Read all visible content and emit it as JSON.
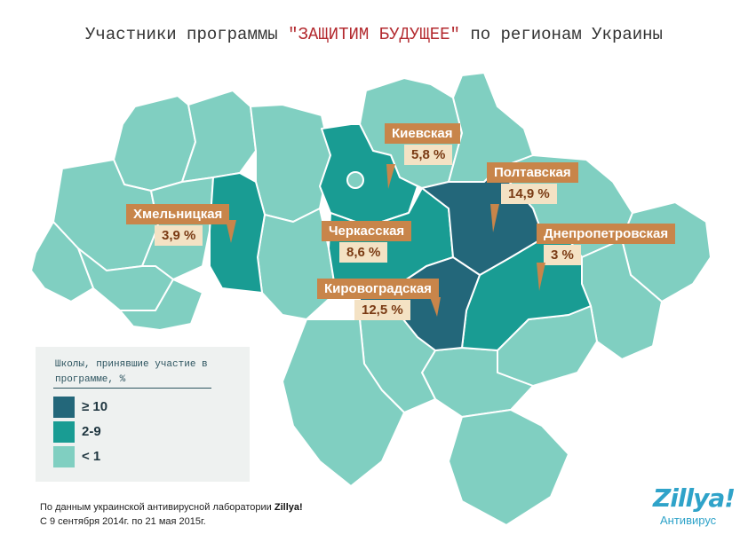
{
  "title": {
    "prefix": "Участники программы",
    "highlight": "\"ЗАЩИТИМ БУДУЩЕЕ\"",
    "suffix": "по регионам Украины"
  },
  "colors": {
    "high": "#23677a",
    "mid": "#199c93",
    "low": "#80cfc1",
    "callout_name": "#c8854a",
    "callout_value": "#f4e2c4",
    "title_highlight": "#b32a2f"
  },
  "callouts": [
    {
      "name": "Киевская",
      "value": "5,8 %"
    },
    {
      "name": "Полтавская",
      "value": "14,9 %"
    },
    {
      "name": "Хмельницкая",
      "value": "3,9 %"
    },
    {
      "name": "Черкасская",
      "value": "8,6 %"
    },
    {
      "name": "Днепропетровская",
      "value": "3 %"
    },
    {
      "name": "Кировоградская",
      "value": "12,5 %"
    }
  ],
  "legend": {
    "title": "Школы, принявшие участие в программе, %",
    "items": [
      {
        "label": "≥ 10",
        "color": "#23677a"
      },
      {
        "label": "2-9",
        "color": "#199c93"
      },
      {
        "label": "< 1",
        "color": "#80cfc1"
      }
    ]
  },
  "source": {
    "line1_prefix": "По данным украинской антивирусной лаборатории",
    "line1_brand": "Zillya!",
    "line2": "С 9 сентября 2014г. по 21 мая 2015г."
  },
  "logo": {
    "brand": "Zillya!",
    "sub": "Антивирус"
  }
}
